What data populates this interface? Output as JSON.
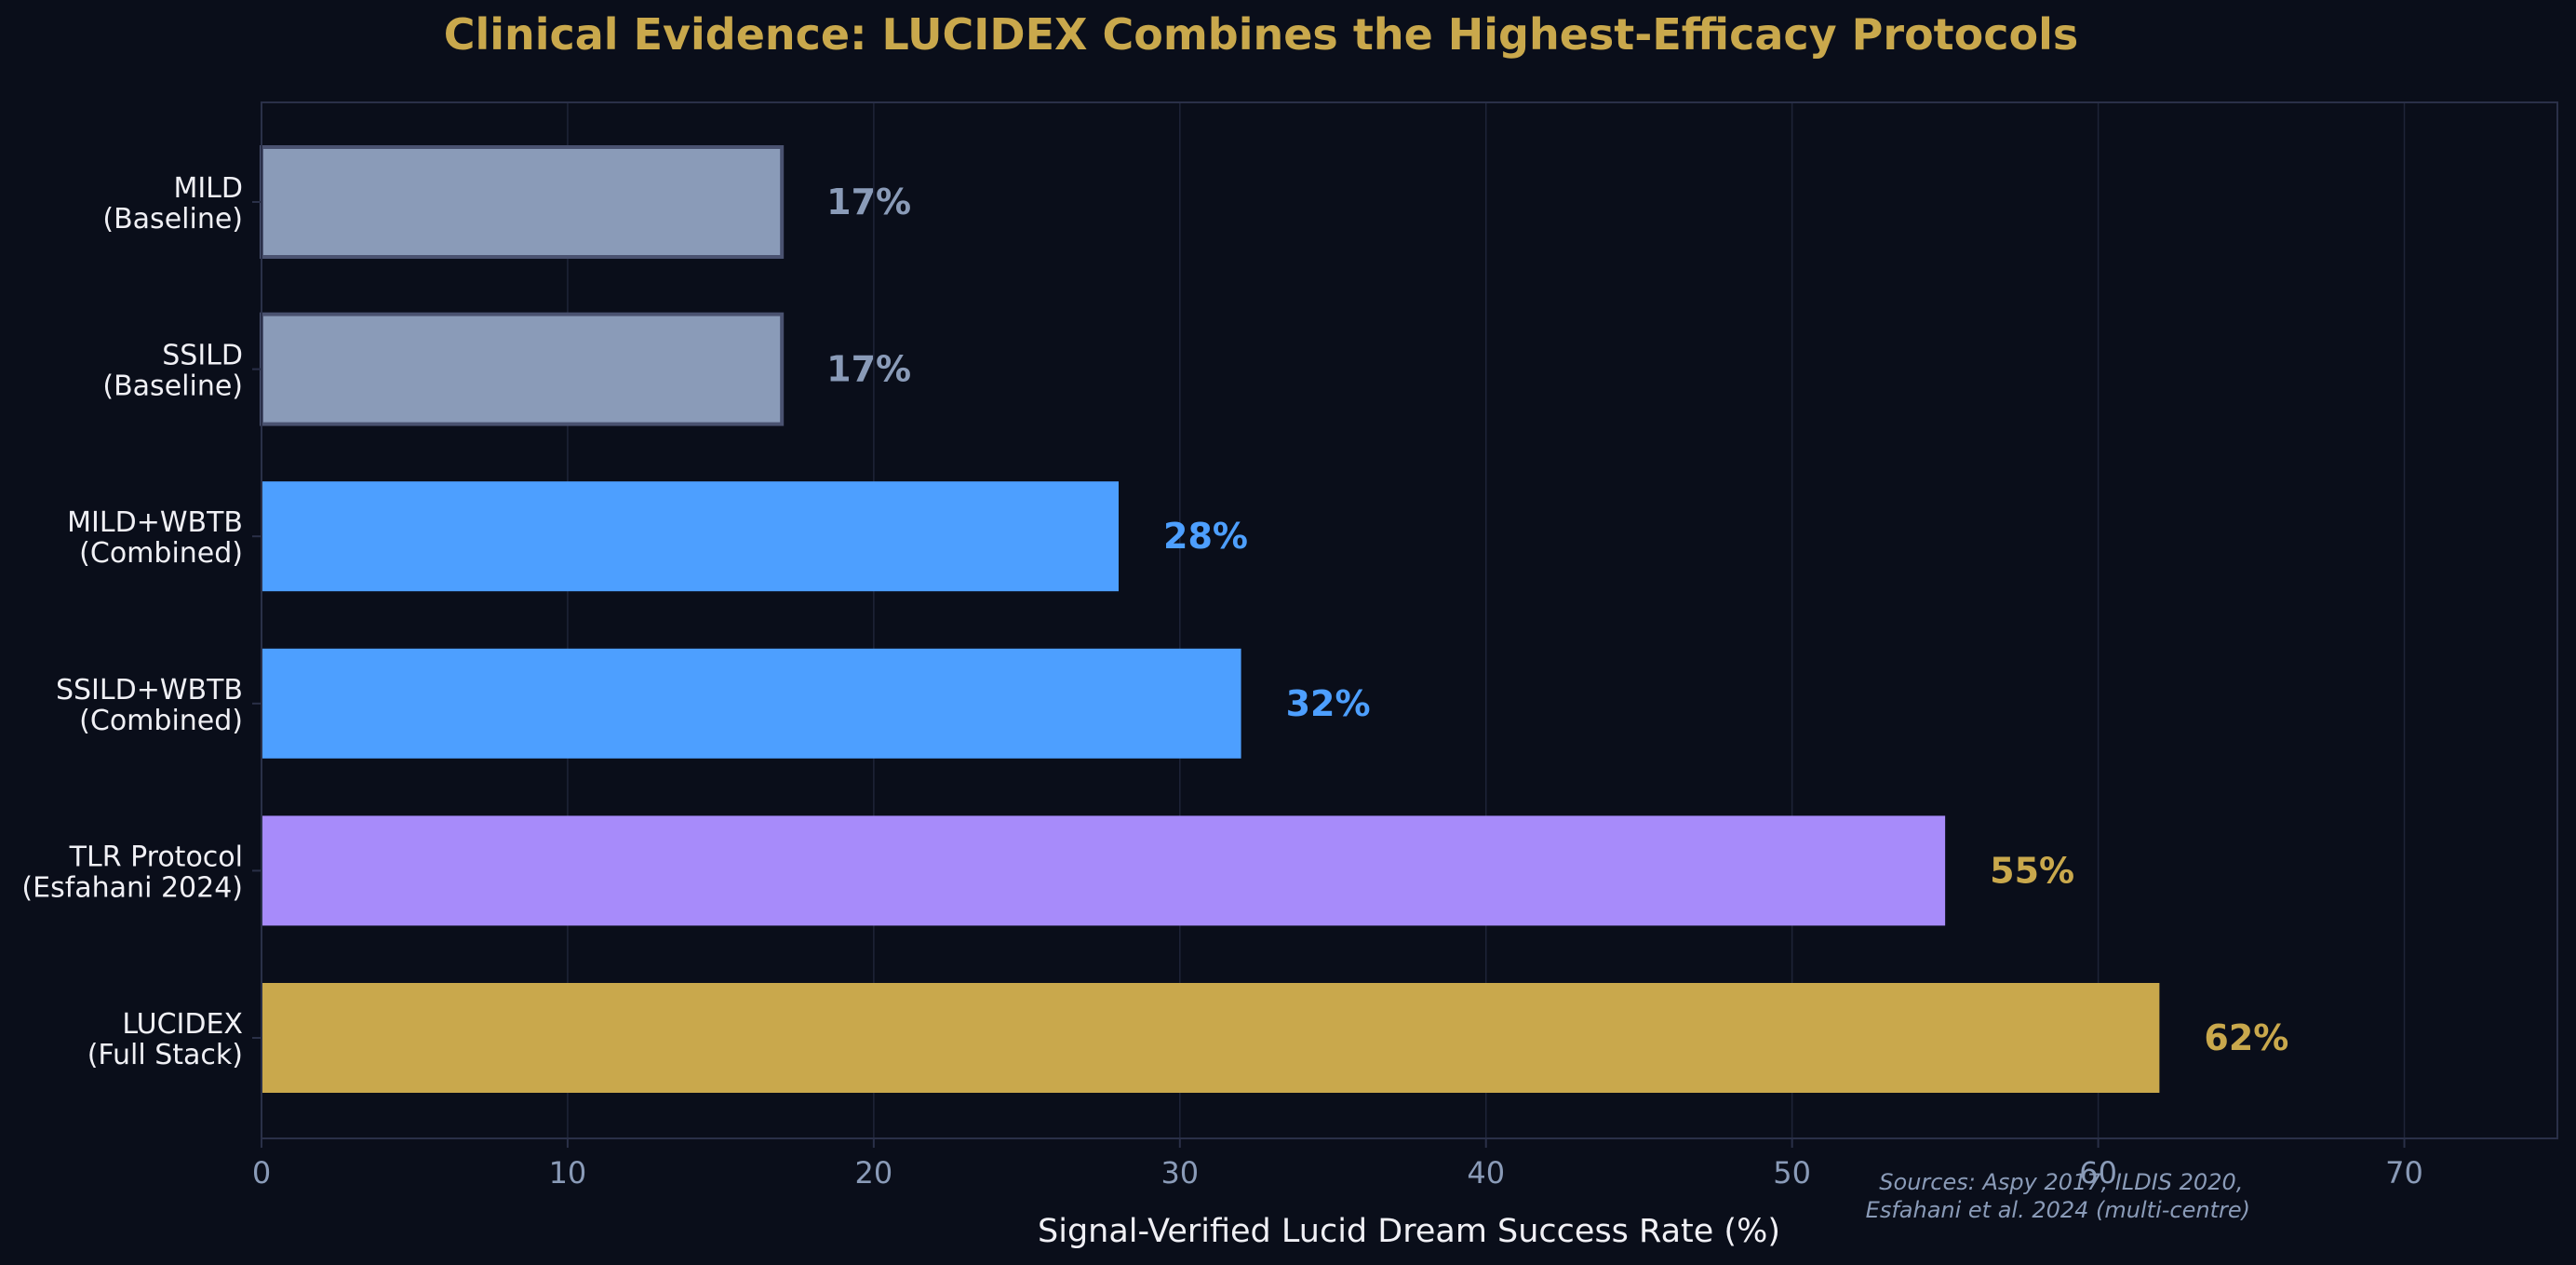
{
  "colors": {
    "background": "#0a0e1a",
    "title": "#c9a84c",
    "axis_text": "#8a9bb8",
    "category_text": "#f0f0f5",
    "grid": "#1e2438",
    "spine": "#2a3048",
    "baseline_bar": "#8a9bb8",
    "baseline_edge": "#4a5270",
    "combined_bar": "#4d9fff",
    "tlr_bar": "#a78bfa",
    "lucidex_bar": "#c9a84c"
  },
  "chart_data": {
    "type": "bar",
    "orientation": "horizontal",
    "title": "Clinical Evidence: LUCIDEX Combines the Highest-Efficacy Protocols",
    "xlabel": "Signal-Verified Lucid Dream Success Rate (%)",
    "ylabel": "",
    "xlim": [
      0,
      75
    ],
    "x_ticks": [
      0,
      10,
      20,
      30,
      40,
      50,
      60,
      70
    ],
    "grid": "vertical",
    "categories": [
      {
        "line1": "MILD",
        "line2": "(Baseline)"
      },
      {
        "line1": "SSILD",
        "line2": "(Baseline)"
      },
      {
        "line1": "MILD+WBTB",
        "line2": "(Combined)"
      },
      {
        "line1": "SSILD+WBTB",
        "line2": "(Combined)"
      },
      {
        "line1": "TLR Protocol",
        "line2": "(Esfahani 2024)"
      },
      {
        "line1": "LUCIDEX",
        "line2": "(Full Stack)"
      }
    ],
    "values": [
      17,
      17,
      28,
      32,
      55,
      62
    ],
    "value_labels": [
      "17%",
      "17%",
      "28%",
      "32%",
      "55%",
      "62%"
    ],
    "bar_colors": [
      "#8a9bb8",
      "#8a9bb8",
      "#4d9fff",
      "#4d9fff",
      "#a78bfa",
      "#c9a84c"
    ],
    "label_colors": [
      "#8a9bb8",
      "#8a9bb8",
      "#4d9fff",
      "#4d9fff",
      "#c9a84c",
      "#c9a84c"
    ],
    "bar_outlined": [
      true,
      true,
      false,
      false,
      false,
      false
    ],
    "source_note": {
      "line1": "Sources: Aspy 2017, ILDIS 2020,",
      "line2": "Esfahani et al. 2024 (multi-centre)"
    }
  }
}
